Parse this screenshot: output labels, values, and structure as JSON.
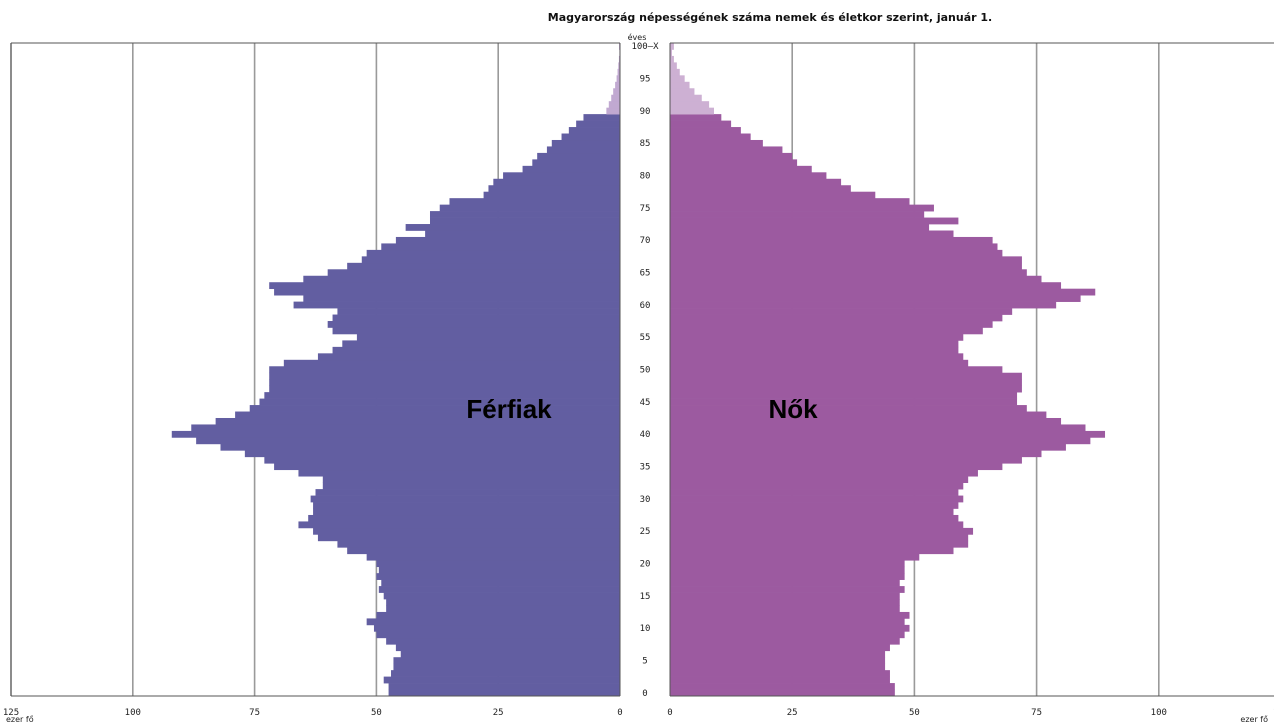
{
  "chart_data": {
    "type": "bar",
    "title": "Magyarország népességének száma nemek és életkor szerint, január 1.",
    "age_axis_label": "éves",
    "unit_label": "ezer fő",
    "y_tick_labels": [
      "0",
      "5",
      "10",
      "15",
      "20",
      "25",
      "30",
      "35",
      "40",
      "45",
      "50",
      "55",
      "60",
      "65",
      "70",
      "75",
      "80",
      "85",
      "90",
      "95",
      "100–X"
    ],
    "x_ticks": [
      0,
      25,
      50,
      75,
      100,
      125
    ],
    "xlim": [
      0,
      125
    ],
    "age_categories_count": 101,
    "open_age_group_from": 90,
    "series": [
      {
        "name": "Férfiak",
        "side": "left",
        "color": "#625ea1",
        "color_open": "#c1a9d1",
        "values": [
          47.5,
          47.5,
          48.5,
          47,
          46.5,
          46.5,
          45,
          46,
          48,
          50,
          50.5,
          52,
          50,
          48,
          48,
          48.5,
          49.5,
          49,
          50,
          49.5,
          50,
          52,
          56,
          58,
          62,
          63,
          66,
          64,
          63,
          63,
          63.5,
          62.5,
          61,
          61,
          66,
          71,
          73,
          77,
          82,
          87,
          92,
          88,
          83,
          79,
          76,
          74,
          73,
          72,
          72,
          72,
          72,
          69,
          62,
          59,
          57,
          54,
          59,
          60,
          59,
          58,
          67,
          65,
          71,
          72,
          65,
          60,
          56,
          53,
          52,
          49,
          46,
          40,
          44,
          39,
          39,
          37,
          35,
          28,
          27,
          26,
          24,
          20,
          18,
          17,
          15,
          14,
          12,
          10.5,
          9,
          7.5,
          2.8,
          2.3,
          1.8,
          1.4,
          1.0,
          0.7,
          0.5,
          0.35,
          0.22,
          0.12,
          0.2
        ]
      },
      {
        "name": "Nők",
        "side": "right",
        "color": "#9c5aa0",
        "color_open": "#cdb0d3",
        "values": [
          46,
          46,
          45,
          45,
          44,
          44,
          44,
          45,
          47,
          48,
          49,
          48,
          49,
          47,
          47,
          47,
          48,
          47,
          48,
          48,
          48,
          51,
          58,
          61,
          61,
          62,
          60,
          59,
          58,
          59,
          60,
          59,
          60,
          61,
          63,
          68,
          72,
          76,
          81,
          86,
          89,
          85,
          80,
          77,
          73,
          71,
          71,
          72,
          72,
          72,
          68,
          61,
          60,
          59,
          59,
          60,
          64,
          66,
          68,
          70,
          79,
          84,
          87,
          80,
          76,
          73,
          72,
          72,
          68,
          67,
          66,
          58,
          53,
          59,
          52,
          54,
          49,
          42,
          37,
          35,
          32,
          29,
          26,
          25,
          23,
          19,
          16.5,
          14.5,
          12.5,
          10.5,
          9,
          8,
          6.5,
          5,
          4,
          3,
          2,
          1.4,
          0.8,
          0.4,
          0.8
        ]
      }
    ],
    "bar_labels": [
      "Férfiak",
      "Nők"
    ],
    "grid": true
  }
}
